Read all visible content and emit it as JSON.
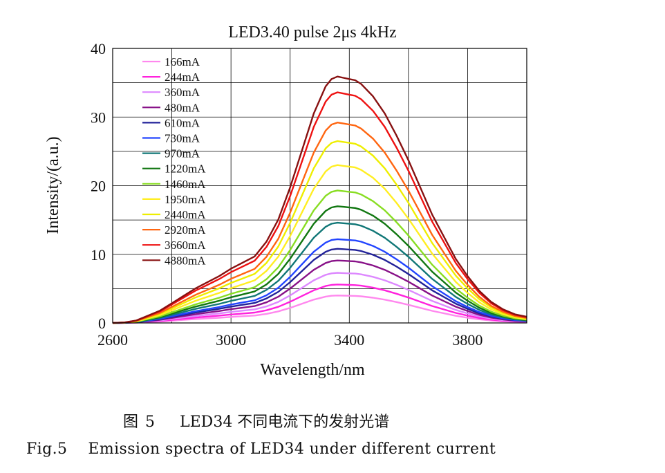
{
  "chart_data": {
    "type": "line",
    "title": "LED3.40 pulse 2μs 4kHz",
    "xlabel": "Wavelength/nm",
    "ylabel": "Intensity/(a.u.)",
    "xlim": [
      2600,
      4000
    ],
    "ylim": [
      0,
      40
    ],
    "xticks": [
      2600,
      3000,
      3400,
      3800
    ],
    "yticks": [
      0,
      10,
      20,
      30,
      40
    ],
    "grid": true,
    "legend_position": "top-left",
    "series": [
      {
        "name": "166mA",
        "color": "#ff88ee",
        "peak": 4.0
      },
      {
        "name": "244mA",
        "color": "#ff22dd",
        "peak": 5.6
      },
      {
        "name": "360mA",
        "color": "#dd88ff",
        "peak": 7.3
      },
      {
        "name": "480mA",
        "color": "#881188",
        "peak": 9.1
      },
      {
        "name": "610mA",
        "color": "#222299",
        "peak": 10.8
      },
      {
        "name": "730mA",
        "color": "#2244ff",
        "peak": 12.2
      },
      {
        "name": "970mA",
        "color": "#117777",
        "peak": 14.6
      },
      {
        "name": "1220mA",
        "color": "#117711",
        "peak": 17.0
      },
      {
        "name": "1460mA",
        "color": "#88dd22",
        "peak": 19.3
      },
      {
        "name": "1950mA",
        "color": "#ffee22",
        "peak": 23.0
      },
      {
        "name": "2440mA",
        "color": "#eeee00",
        "peak": 26.5
      },
      {
        "name": "2920mA",
        "color": "#ff6611",
        "peak": 29.2
      },
      {
        "name": "3660mA",
        "color": "#ee1111",
        "peak": 33.6
      },
      {
        "name": "4880mA",
        "color": "#881111",
        "peak": 35.9
      }
    ],
    "profile_wavelength": [
      2600,
      2640,
      2680,
      2720,
      2760,
      2800,
      2840,
      2880,
      2920,
      2960,
      3000,
      3040,
      3080,
      3120,
      3160,
      3200,
      3240,
      3280,
      3320,
      3340,
      3360,
      3380,
      3400,
      3420,
      3440,
      3480,
      3520,
      3560,
      3600,
      3640,
      3680,
      3720,
      3760,
      3800,
      3840,
      3880,
      3920,
      3960,
      4000
    ],
    "profile_relative": [
      0.0,
      0.002,
      0.01,
      0.03,
      0.05,
      0.08,
      0.11,
      0.14,
      0.165,
      0.19,
      0.22,
      0.245,
      0.27,
      0.33,
      0.42,
      0.55,
      0.7,
      0.85,
      0.96,
      0.99,
      1.0,
      0.995,
      0.99,
      0.985,
      0.97,
      0.92,
      0.85,
      0.76,
      0.66,
      0.55,
      0.44,
      0.35,
      0.26,
      0.19,
      0.13,
      0.085,
      0.055,
      0.035,
      0.025
    ]
  },
  "caption": {
    "cn_prefix": "图",
    "cn_number": "5",
    "cn_text": "LED34 不同电流下的发射光谱",
    "en_prefix": "Fig.5",
    "en_text": "Emission spectra of LED34 under different current"
  }
}
